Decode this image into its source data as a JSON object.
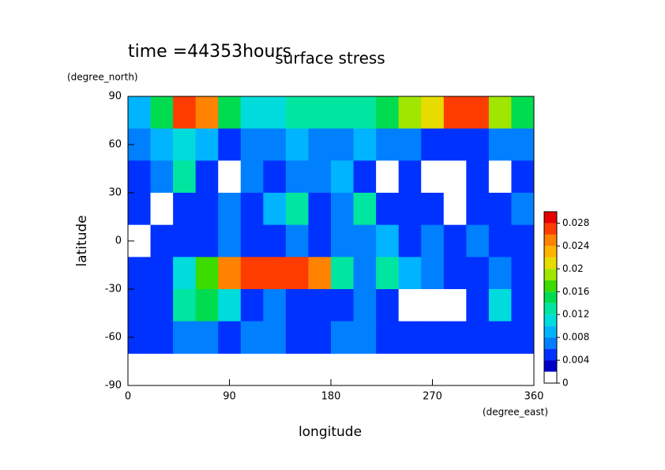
{
  "chart_data": {
    "type": "contour",
    "title": "surface stress",
    "subtitle": "time =44353hours",
    "x_label": "longitude",
    "x_unit": "(degree_east)",
    "y_label": "latitude",
    "y_unit": "(degree_north)",
    "xlim": [
      0,
      360
    ],
    "ylim": [
      -90,
      90
    ],
    "xticks": [
      0,
      90,
      180,
      270,
      360
    ],
    "yticks": [
      90,
      60,
      30,
      0,
      -30,
      -60,
      -90
    ],
    "x": [
      10,
      30,
      50,
      70,
      90,
      110,
      130,
      150,
      170,
      190,
      210,
      230,
      250,
      270,
      290,
      310,
      330,
      350
    ],
    "y": [
      80,
      60,
      40,
      20,
      0,
      -20,
      -40,
      -60
    ],
    "z": [
      [
        0.008,
        0.014,
        0.026,
        0.024,
        0.014,
        0.01,
        0.01,
        0.012,
        0.012,
        0.012,
        0.012,
        0.014,
        0.018,
        0.02,
        0.026,
        0.026,
        0.018,
        0.014
      ],
      [
        0.006,
        0.008,
        0.01,
        0.008,
        0.004,
        0.006,
        0.006,
        0.008,
        0.006,
        0.006,
        0.008,
        0.006,
        0.006,
        0.004,
        0.004,
        0.004,
        0.006,
        0.006
      ],
      [
        0.004,
        0.006,
        0.012,
        0.004,
        0.001,
        0.006,
        0.004,
        0.006,
        0.006,
        0.008,
        0.004,
        0.001,
        0.004,
        0.001,
        0.001,
        0.004,
        0.001,
        0.004
      ],
      [
        0.004,
        0.001,
        0.004,
        0.004,
        0.006,
        0.004,
        0.008,
        0.012,
        0.004,
        0.006,
        0.012,
        0.004,
        0.004,
        0.004,
        0.001,
        0.004,
        0.004,
        0.006
      ],
      [
        0.001,
        0.004,
        0.004,
        0.004,
        0.006,
        0.004,
        0.004,
        0.006,
        0.004,
        0.006,
        0.006,
        0.008,
        0.004,
        0.006,
        0.004,
        0.006,
        0.004,
        0.004
      ],
      [
        0.004,
        0.004,
        0.01,
        0.016,
        0.024,
        0.026,
        0.026,
        0.026,
        0.024,
        0.012,
        0.006,
        0.012,
        0.008,
        0.006,
        0.004,
        0.004,
        0.006,
        0.004
      ],
      [
        0.004,
        0.004,
        0.012,
        0.014,
        0.01,
        0.004,
        0.006,
        0.004,
        0.004,
        0.004,
        0.006,
        0.004,
        0.001,
        0.001,
        0.001,
        0.004,
        0.01,
        0.004
      ],
      [
        0.004,
        0.004,
        0.006,
        0.006,
        0.004,
        0.006,
        0.006,
        0.004,
        0.004,
        0.006,
        0.006,
        0.004,
        0.004,
        0.004,
        0.004,
        0.004,
        0.004,
        0.004
      ]
    ],
    "levels": [
      0,
      0.002,
      0.004,
      0.006,
      0.008,
      0.01,
      0.012,
      0.014,
      0.016,
      0.018,
      0.02,
      0.022,
      0.024,
      0.026,
      0.028,
      0.03
    ],
    "colors": [
      "#ffffff",
      "#0000c8",
      "#0032ff",
      "#0080ff",
      "#00b4ff",
      "#00dcdc",
      "#00e6a0",
      "#00dc50",
      "#3cdc00",
      "#a0e600",
      "#e6dc00",
      "#ffb400",
      "#ff8200",
      "#ff3c00",
      "#e60000"
    ],
    "colorbar_ticks": [
      0,
      0.004,
      0.008,
      0.012,
      0.016,
      0.02,
      0.024,
      0.028
    ]
  }
}
